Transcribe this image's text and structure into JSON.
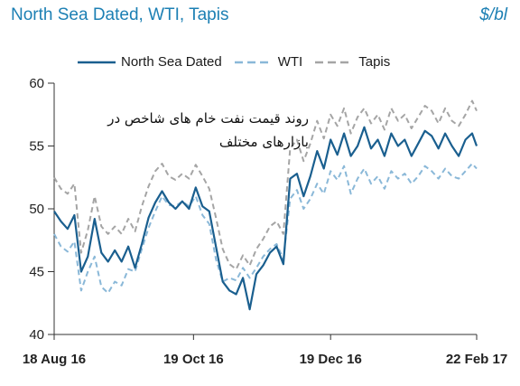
{
  "header": {
    "title": "North Sea Dated, WTI, Tapis",
    "unit": "$/bl"
  },
  "annotation": {
    "line1": "روند قیمت نفت خام های شاخص در",
    "line2": "بازارهای مختلف"
  },
  "chart_data": {
    "type": "line",
    "title": "North Sea Dated, WTI, Tapis",
    "ylabel": "$/bl",
    "xlabel": "",
    "ylim": [
      40,
      60
    ],
    "xlim": [
      0,
      188
    ],
    "yticks": [
      40,
      45,
      50,
      55,
      60
    ],
    "xticks": [
      {
        "x": 0,
        "label": "18 Aug 16"
      },
      {
        "x": 62,
        "label": "19 Oct 16"
      },
      {
        "x": 123,
        "label": "19 Dec 16"
      },
      {
        "x": 188,
        "label": "22 Feb 17"
      }
    ],
    "grid": false,
    "legend": "top",
    "series": [
      {
        "name": "North Sea Dated",
        "color": "#1a5f8f",
        "dash": "solid",
        "x": [
          0,
          3,
          6,
          9,
          12,
          15,
          18,
          21,
          24,
          27,
          30,
          33,
          36,
          39,
          42,
          45,
          48,
          51,
          54,
          57,
          60,
          63,
          66,
          69,
          72,
          75,
          78,
          81,
          84,
          87,
          90,
          93,
          96,
          99,
          102,
          105,
          108,
          111,
          114,
          117,
          120,
          123,
          126,
          129,
          132,
          135,
          138,
          141,
          144,
          147,
          150,
          153,
          156,
          159,
          162,
          165,
          168,
          171,
          174,
          177,
          180,
          183,
          186,
          188
        ],
        "y": [
          49.8,
          49.0,
          48.4,
          49.5,
          45.0,
          46.2,
          49.2,
          46.5,
          45.8,
          46.7,
          45.8,
          47.0,
          45.3,
          47.2,
          49.3,
          50.5,
          51.4,
          50.5,
          50.0,
          50.6,
          50.0,
          51.7,
          50.2,
          49.8,
          47.0,
          44.2,
          43.5,
          43.2,
          44.5,
          42.0,
          44.8,
          45.5,
          46.5,
          47.0,
          45.6,
          52.4,
          52.8,
          51.0,
          52.6,
          54.6,
          53.2,
          55.5,
          54.3,
          56.0,
          54.2,
          55.0,
          56.5,
          54.8,
          55.5,
          54.2,
          56.0,
          55.0,
          55.5,
          54.2,
          55.2,
          56.2,
          55.8,
          54.8,
          56.0,
          55.0,
          54.2,
          55.5,
          56.0,
          55.0
        ]
      },
      {
        "name": "WTI",
        "color": "#8ab8d8",
        "dash": "6,4",
        "x": [
          0,
          3,
          6,
          9,
          12,
          15,
          18,
          21,
          24,
          27,
          30,
          33,
          36,
          39,
          42,
          45,
          48,
          51,
          54,
          57,
          60,
          63,
          66,
          69,
          72,
          75,
          78,
          81,
          84,
          87,
          90,
          93,
          96,
          99,
          102,
          105,
          108,
          111,
          114,
          117,
          120,
          123,
          126,
          129,
          132,
          135,
          138,
          141,
          144,
          147,
          150,
          153,
          156,
          159,
          162,
          165,
          168,
          171,
          174,
          177,
          180,
          183,
          186,
          188
        ],
        "y": [
          48.0,
          47.0,
          46.6,
          47.4,
          43.5,
          45.0,
          46.2,
          43.8,
          43.3,
          44.2,
          43.9,
          45.2,
          45.0,
          46.8,
          48.5,
          49.8,
          51.0,
          50.3,
          50.2,
          50.6,
          50.2,
          51.0,
          49.5,
          48.8,
          46.0,
          44.2,
          44.5,
          44.3,
          45.3,
          44.5,
          45.3,
          46.2,
          46.8,
          47.2,
          46.0,
          50.8,
          51.5,
          50.0,
          50.8,
          52.0,
          51.2,
          53.0,
          52.3,
          53.4,
          51.2,
          52.4,
          53.2,
          52.0,
          52.6,
          51.6,
          53.0,
          52.4,
          52.8,
          52.0,
          52.6,
          53.4,
          53.0,
          52.4,
          53.2,
          52.6,
          52.4,
          53.0,
          53.6,
          53.2
        ]
      },
      {
        "name": "Tapis",
        "color": "#a5a5a5",
        "dash": "6,4",
        "x": [
          0,
          3,
          6,
          9,
          12,
          15,
          18,
          21,
          24,
          27,
          30,
          33,
          36,
          39,
          42,
          45,
          48,
          51,
          54,
          57,
          60,
          63,
          66,
          69,
          72,
          75,
          78,
          81,
          84,
          87,
          90,
          93,
          96,
          99,
          102,
          105,
          108,
          111,
          114,
          117,
          120,
          123,
          126,
          129,
          132,
          135,
          138,
          141,
          144,
          147,
          150,
          153,
          156,
          159,
          162,
          165,
          168,
          171,
          174,
          177,
          180,
          183,
          186,
          188
        ],
        "y": [
          52.5,
          51.6,
          51.2,
          52.0,
          46.5,
          48.3,
          51.0,
          48.6,
          48.0,
          48.6,
          48.0,
          49.2,
          48.2,
          50.2,
          51.8,
          53.0,
          53.6,
          52.6,
          52.3,
          52.8,
          52.4,
          53.5,
          52.6,
          51.6,
          49.3,
          46.8,
          45.6,
          45.2,
          46.3,
          45.5,
          46.8,
          47.6,
          48.6,
          49.0,
          48.0,
          54.8,
          55.5,
          53.8,
          55.2,
          57.0,
          55.6,
          57.5,
          56.6,
          58.0,
          56.0,
          57.3,
          58.0,
          56.8,
          57.5,
          56.3,
          58.0,
          57.0,
          57.5,
          56.4,
          57.3,
          58.2,
          57.8,
          56.8,
          58.0,
          57.0,
          56.6,
          57.5,
          58.6,
          57.8
        ]
      }
    ]
  }
}
